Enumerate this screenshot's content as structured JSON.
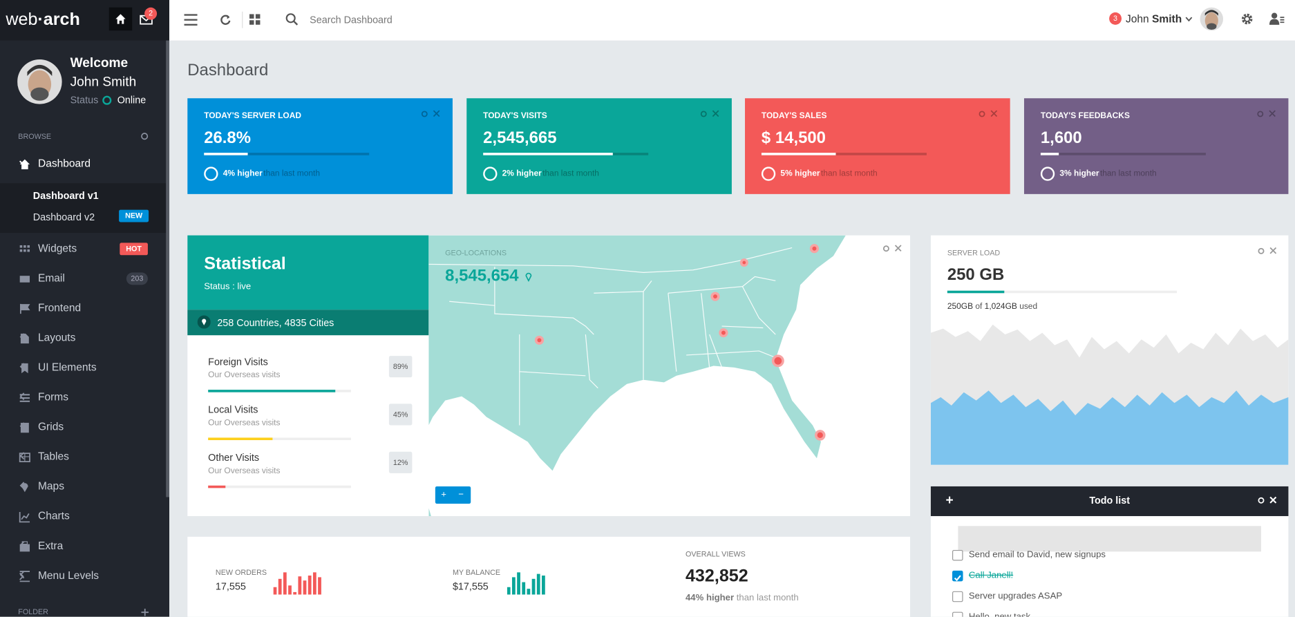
{
  "brand": {
    "light": "web",
    "bold": "·arch"
  },
  "header": {
    "mail_badge": "2",
    "search_placeholder": "Search Dashboard",
    "notification_count": "3",
    "user_first": "John",
    "user_last": "Smith"
  },
  "sidebar": {
    "welcome": "Welcome",
    "user": "John Smith",
    "status_label": "Status",
    "status": "Online",
    "browse": "BROWSE",
    "menu": [
      {
        "label": "Dashboard"
      },
      {
        "label": "Widgets",
        "badge": "HOT"
      },
      {
        "label": "Email",
        "badge": "203"
      },
      {
        "label": "Frontend"
      },
      {
        "label": "Layouts"
      },
      {
        "label": "UI Elements"
      },
      {
        "label": "Forms"
      },
      {
        "label": "Grids"
      },
      {
        "label": "Tables"
      },
      {
        "label": "Maps"
      },
      {
        "label": "Charts"
      },
      {
        "label": "Extra"
      },
      {
        "label": "Menu Levels"
      }
    ],
    "submenu": [
      {
        "label": "Dashboard v1"
      },
      {
        "label": "Dashboard v2",
        "badge": "NEW"
      }
    ],
    "folder": "FOLDER"
  },
  "page_title": "Dashboard",
  "tiles": [
    {
      "title": "TODAY'S SERVER LOAD",
      "value": "26.8%",
      "change": "4% higher",
      "suffix": "than last month"
    },
    {
      "title": "TODAY'S VISITS",
      "value": "2,545,665",
      "change": "2% higher",
      "suffix": "than last month"
    },
    {
      "title": "TODAY'S SALES",
      "value": "$ 14,500",
      "change": "5% higher",
      "suffix": "than last month"
    },
    {
      "title": "TODAY'S FEEDBACKS",
      "value": "1,600",
      "change": "3% higher",
      "suffix": "than last month"
    }
  ],
  "statistical": {
    "title": "Statistical",
    "status": "Status : live",
    "location": "258 Countries, 4835 Cities",
    "items": [
      {
        "name": "Foreign Visits",
        "sub": "Our Overseas visits",
        "pct": "89%"
      },
      {
        "name": "Local Visits",
        "sub": "Our Overseas visits",
        "pct": "45%"
      },
      {
        "name": "Other Visits",
        "sub": "Our Overseas visits",
        "pct": "12%"
      }
    ]
  },
  "geo": {
    "label": "GEO-LOCATIONS",
    "value": "8,545,654",
    "zoom_in": "+",
    "zoom_out": "−"
  },
  "server_load": {
    "label": "SERVER LOAD",
    "value": "250 GB",
    "used": "250GB",
    "of": "of",
    "total": "1,024GB",
    "used_word": "used"
  },
  "todo": {
    "add": "+",
    "title": "Todo list",
    "items": [
      {
        "text": "Send email to David, new signups",
        "done": false
      },
      {
        "text": "Call Janell!",
        "done": true
      },
      {
        "text": "Server upgrades ASAP",
        "done": false
      },
      {
        "text": "Hello, new task",
        "done": false
      }
    ]
  },
  "bottom": {
    "orders_label": "NEW ORDERS",
    "orders_value": "17,555",
    "balance_label": "MY BALANCE",
    "balance_value": "$17,555",
    "views_label": "OVERALL VIEWS",
    "views_value": "432,852",
    "views_change": "44% higher",
    "views_suffix": "than last month"
  }
}
